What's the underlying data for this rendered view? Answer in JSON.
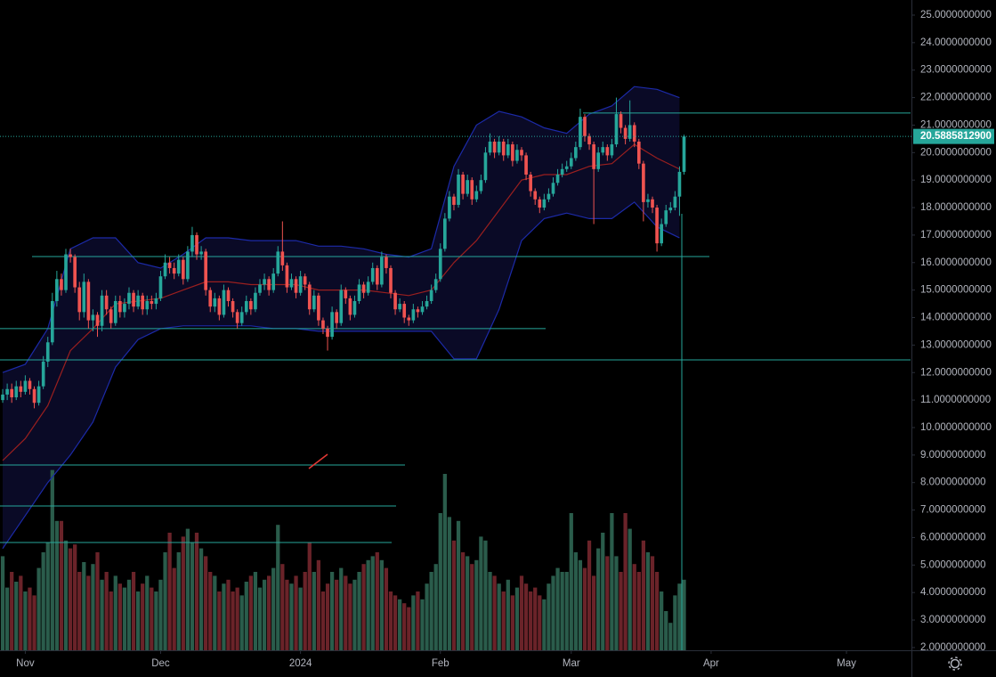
{
  "chart_data": {
    "type": "candlestick",
    "up_color": "#26a69a",
    "down_color": "#ef5350",
    "volume_up_color": "#2a5c4b",
    "volume_down_color": "#6a2329",
    "xlim": [
      -0.6,
      201.4
    ],
    "xticks": [
      {
        "value": 5,
        "label": "Nov"
      },
      {
        "value": 35,
        "label": "Dec"
      },
      {
        "value": 66,
        "label": "2024"
      },
      {
        "value": 97,
        "label": "Feb"
      },
      {
        "value": 126,
        "label": "Mar"
      },
      {
        "value": 157,
        "label": "Apr"
      },
      {
        "value": 187,
        "label": "May"
      }
    ],
    "ylim": [
      1.9,
      25.55
    ],
    "yticks": [
      {
        "value": 2,
        "label": "2.0000000000"
      },
      {
        "value": 3,
        "label": "3.0000000000"
      },
      {
        "value": 4,
        "label": "4.0000000000"
      },
      {
        "value": 5,
        "label": "5.0000000000"
      },
      {
        "value": 6,
        "label": "6.0000000000"
      },
      {
        "value": 7,
        "label": "7.0000000000"
      },
      {
        "value": 8,
        "label": "8.0000000000"
      },
      {
        "value": 9,
        "label": "9.0000000000"
      },
      {
        "value": 10,
        "label": "10.0000000000"
      },
      {
        "value": 11,
        "label": "11.0000000000"
      },
      {
        "value": 12,
        "label": "12.0000000000"
      },
      {
        "value": 13,
        "label": "13.0000000000"
      },
      {
        "value": 14,
        "label": "14.0000000000"
      },
      {
        "value": 15,
        "label": "15.0000000000"
      },
      {
        "value": 16,
        "label": "16.0000000000"
      },
      {
        "value": 17,
        "label": "17.0000000000"
      },
      {
        "value": 18,
        "label": "18.0000000000"
      },
      {
        "value": 19,
        "label": "19.0000000000"
      },
      {
        "value": 20,
        "label": "20.0000000000"
      },
      {
        "value": 21,
        "label": "21.0000000000"
      },
      {
        "value": 22,
        "label": "22.0000000000"
      },
      {
        "value": 23,
        "label": "23.0000000000"
      },
      {
        "value": 24,
        "label": "24.0000000000"
      },
      {
        "value": 25,
        "label": "25.0000000000"
      }
    ],
    "last_price": {
      "value": 20.58858129,
      "label": "20.5885812900"
    },
    "ohlc": [
      [
        11.0,
        11.4,
        10.9,
        11.2
      ],
      [
        11.2,
        11.6,
        11.0,
        11.4
      ],
      [
        11.4,
        11.6,
        10.9,
        11.1
      ],
      [
        11.1,
        11.7,
        11.0,
        11.5
      ],
      [
        11.5,
        11.7,
        11.1,
        11.3
      ],
      [
        11.3,
        11.9,
        11.2,
        11.7
      ],
      [
        11.7,
        11.8,
        11.2,
        11.4
      ],
      [
        11.4,
        11.5,
        10.7,
        10.9
      ],
      [
        10.9,
        11.7,
        10.8,
        11.5
      ],
      [
        11.5,
        12.6,
        11.4,
        12.4
      ],
      [
        12.4,
        13.3,
        12.2,
        13.1
      ],
      [
        13.1,
        14.9,
        13.0,
        14.6
      ],
      [
        14.6,
        15.7,
        14.4,
        15.4
      ],
      [
        15.4,
        15.6,
        14.8,
        15.0
      ],
      [
        15.0,
        16.5,
        14.9,
        16.3
      ],
      [
        16.3,
        16.5,
        16.0,
        16.2
      ],
      [
        16.2,
        16.3,
        14.9,
        15.1
      ],
      [
        15.1,
        15.3,
        13.9,
        14.2
      ],
      [
        14.2,
        15.6,
        14.0,
        15.3
      ],
      [
        15.3,
        15.4,
        13.6,
        13.9
      ],
      [
        13.9,
        14.3,
        13.5,
        14.1
      ],
      [
        14.1,
        14.2,
        13.3,
        13.7
      ],
      [
        13.7,
        15.0,
        13.5,
        14.8
      ],
      [
        14.8,
        15.0,
        14.1,
        14.3
      ],
      [
        14.3,
        14.4,
        13.6,
        13.8
      ],
      [
        13.8,
        14.8,
        13.7,
        14.6
      ],
      [
        14.6,
        14.8,
        14.0,
        14.2
      ],
      [
        14.2,
        14.7,
        14.0,
        14.5
      ],
      [
        14.5,
        15.1,
        14.3,
        14.9
      ],
      [
        14.9,
        15.0,
        14.2,
        14.4
      ],
      [
        14.4,
        15.0,
        14.3,
        14.8
      ],
      [
        14.8,
        14.9,
        14.1,
        14.3
      ],
      [
        14.3,
        14.8,
        14.1,
        14.6
      ],
      [
        14.6,
        14.8,
        14.3,
        14.5
      ],
      [
        14.5,
        14.9,
        14.3,
        14.7
      ],
      [
        14.7,
        15.7,
        14.6,
        15.5
      ],
      [
        15.5,
        16.3,
        15.4,
        16.0
      ],
      [
        16.0,
        16.2,
        15.6,
        15.8
      ],
      [
        15.8,
        16.0,
        15.4,
        15.6
      ],
      [
        15.6,
        16.3,
        15.5,
        16.1
      ],
      [
        16.1,
        16.2,
        15.2,
        15.4
      ],
      [
        15.4,
        16.6,
        15.3,
        16.4
      ],
      [
        16.4,
        17.3,
        16.2,
        17.0
      ],
      [
        17.0,
        17.1,
        16.1,
        16.3
      ],
      [
        16.3,
        16.6,
        16.1,
        16.4
      ],
      [
        16.4,
        16.5,
        14.8,
        15.0
      ],
      [
        15.0,
        15.1,
        14.2,
        14.4
      ],
      [
        14.4,
        14.9,
        14.2,
        14.7
      ],
      [
        14.7,
        14.8,
        13.9,
        14.1
      ],
      [
        14.1,
        15.2,
        14.0,
        15.0
      ],
      [
        15.0,
        15.1,
        14.4,
        14.6
      ],
      [
        14.6,
        14.7,
        14.0,
        14.2
      ],
      [
        14.2,
        14.3,
        13.6,
        13.8
      ],
      [
        13.8,
        14.4,
        13.7,
        14.2
      ],
      [
        14.2,
        14.8,
        14.1,
        14.6
      ],
      [
        14.6,
        14.7,
        14.1,
        14.3
      ],
      [
        14.3,
        15.1,
        14.2,
        14.9
      ],
      [
        14.9,
        15.4,
        14.8,
        15.2
      ],
      [
        15.2,
        15.6,
        15.0,
        15.4
      ],
      [
        15.4,
        15.5,
        14.8,
        15.0
      ],
      [
        15.0,
        15.8,
        14.9,
        15.6
      ],
      [
        15.6,
        16.6,
        15.5,
        16.4
      ],
      [
        16.4,
        17.5,
        15.7,
        15.9
      ],
      [
        15.9,
        16.0,
        14.9,
        15.1
      ],
      [
        15.1,
        15.6,
        15.0,
        15.4
      ],
      [
        15.4,
        15.5,
        14.7,
        14.9
      ],
      [
        14.9,
        15.7,
        14.8,
        15.5
      ],
      [
        15.5,
        15.6,
        15.0,
        15.2
      ],
      [
        15.2,
        15.3,
        14.1,
        14.3
      ],
      [
        14.3,
        15.0,
        14.2,
        14.8
      ],
      [
        14.8,
        14.9,
        13.7,
        13.9
      ],
      [
        13.9,
        14.0,
        13.4,
        13.6
      ],
      [
        13.6,
        13.7,
        12.8,
        13.3
      ],
      [
        13.3,
        14.4,
        13.2,
        14.2
      ],
      [
        14.2,
        14.3,
        13.6,
        13.8
      ],
      [
        13.8,
        15.2,
        13.7,
        15.0
      ],
      [
        15.0,
        15.1,
        14.5,
        14.7
      ],
      [
        14.7,
        14.8,
        13.9,
        14.1
      ],
      [
        14.1,
        14.8,
        14.0,
        14.6
      ],
      [
        14.6,
        15.4,
        14.5,
        15.2
      ],
      [
        15.2,
        15.3,
        14.7,
        14.9
      ],
      [
        14.9,
        15.5,
        14.8,
        15.3
      ],
      [
        15.3,
        16.0,
        15.2,
        15.8
      ],
      [
        15.8,
        15.9,
        15.0,
        15.2
      ],
      [
        15.2,
        16.4,
        15.1,
        16.2
      ],
      [
        16.2,
        16.3,
        15.6,
        15.8
      ],
      [
        15.8,
        15.9,
        14.7,
        14.9
      ],
      [
        14.9,
        15.0,
        14.1,
        14.3
      ],
      [
        14.3,
        14.7,
        14.2,
        14.5
      ],
      [
        14.5,
        14.6,
        13.8,
        14.0
      ],
      [
        14.0,
        14.1,
        13.7,
        13.9
      ],
      [
        13.9,
        14.5,
        13.8,
        14.3
      ],
      [
        14.3,
        14.4,
        14.0,
        14.2
      ],
      [
        14.2,
        14.6,
        14.1,
        14.4
      ],
      [
        14.4,
        14.8,
        14.3,
        14.6
      ],
      [
        14.6,
        15.2,
        14.5,
        15.0
      ],
      [
        15.0,
        15.6,
        14.9,
        15.4
      ],
      [
        15.4,
        16.7,
        15.3,
        16.5
      ],
      [
        16.5,
        17.8,
        16.4,
        17.6
      ],
      [
        17.6,
        18.6,
        17.5,
        18.4
      ],
      [
        18.4,
        18.5,
        17.9,
        18.1
      ],
      [
        18.1,
        19.4,
        18.0,
        19.2
      ],
      [
        19.2,
        19.3,
        18.3,
        18.5
      ],
      [
        18.5,
        19.2,
        18.4,
        19.0
      ],
      [
        19.0,
        19.1,
        18.1,
        18.3
      ],
      [
        18.3,
        18.8,
        18.2,
        18.6
      ],
      [
        18.6,
        19.2,
        18.5,
        19.0
      ],
      [
        19.0,
        20.2,
        18.9,
        20.0
      ],
      [
        20.0,
        20.7,
        19.9,
        20.4
      ],
      [
        20.4,
        20.5,
        19.8,
        20.0
      ],
      [
        20.0,
        20.6,
        19.9,
        20.4
      ],
      [
        20.4,
        20.5,
        19.7,
        19.9
      ],
      [
        19.9,
        20.5,
        19.8,
        20.3
      ],
      [
        20.3,
        20.4,
        19.5,
        19.7
      ],
      [
        19.7,
        20.3,
        19.6,
        20.1
      ],
      [
        20.1,
        20.2,
        19.7,
        19.9
      ],
      [
        19.9,
        20.0,
        19.0,
        19.2
      ],
      [
        19.2,
        19.3,
        18.4,
        18.6
      ],
      [
        18.6,
        18.7,
        18.1,
        18.3
      ],
      [
        18.3,
        18.4,
        17.8,
        18.0
      ],
      [
        18.0,
        18.5,
        17.9,
        18.3
      ],
      [
        18.3,
        18.7,
        18.2,
        18.5
      ],
      [
        18.5,
        19.1,
        18.4,
        18.9
      ],
      [
        18.9,
        19.4,
        18.8,
        19.2
      ],
      [
        19.2,
        19.6,
        19.1,
        19.4
      ],
      [
        19.4,
        19.7,
        19.3,
        19.5
      ],
      [
        19.5,
        20.0,
        19.4,
        19.8
      ],
      [
        19.8,
        20.4,
        19.7,
        20.2
      ],
      [
        20.2,
        21.6,
        20.1,
        21.3
      ],
      [
        21.3,
        21.4,
        20.4,
        20.6
      ],
      [
        20.6,
        20.7,
        20.1,
        20.3
      ],
      [
        20.3,
        20.4,
        17.4,
        19.4
      ],
      [
        19.4,
        20.2,
        19.3,
        20.0
      ],
      [
        20.0,
        20.4,
        19.9,
        20.2
      ],
      [
        20.2,
        20.3,
        19.7,
        19.9
      ],
      [
        19.9,
        20.5,
        19.8,
        20.3
      ],
      [
        20.3,
        22.0,
        20.2,
        21.4
      ],
      [
        21.4,
        21.5,
        20.7,
        20.9
      ],
      [
        20.9,
        21.0,
        20.3,
        20.5
      ],
      [
        20.5,
        21.9,
        20.4,
        21.0
      ],
      [
        21.0,
        21.1,
        20.2,
        20.4
      ],
      [
        20.4,
        20.5,
        19.4,
        19.6
      ],
      [
        19.6,
        19.7,
        17.5,
        18.2
      ],
      [
        18.2,
        18.5,
        18.0,
        18.3
      ],
      [
        18.3,
        18.4,
        17.8,
        18.0
      ],
      [
        18.0,
        18.1,
        16.4,
        16.7
      ],
      [
        16.7,
        17.6,
        16.6,
        17.4
      ],
      [
        17.4,
        18.1,
        17.3,
        17.9
      ],
      [
        17.9,
        18.2,
        17.8,
        18.0
      ],
      [
        18.0,
        18.6,
        17.9,
        18.4
      ],
      [
        18.4,
        19.5,
        17.7,
        19.3
      ],
      [
        19.3,
        20.65,
        19.2,
        20.58858129
      ]
    ],
    "volume_lim": [
      0,
      100
    ],
    "volume": [
      48,
      32,
      40,
      35,
      38,
      30,
      32,
      28,
      42,
      50,
      55,
      92,
      66,
      66,
      56,
      52,
      54,
      40,
      45,
      38,
      44,
      50,
      36,
      40,
      30,
      38,
      34,
      32,
      36,
      40,
      30,
      34,
      38,
      32,
      30,
      36,
      50,
      60,
      42,
      50,
      58,
      62,
      55,
      60,
      52,
      48,
      40,
      38,
      30,
      34,
      36,
      30,
      32,
      28,
      35,
      38,
      40,
      32,
      36,
      38,
      42,
      64,
      44,
      36,
      34,
      38,
      32,
      40,
      55,
      40,
      46,
      30,
      34,
      40,
      36,
      42,
      38,
      34,
      36,
      40,
      44,
      46,
      48,
      50,
      46,
      42,
      30,
      28,
      26,
      24,
      22,
      28,
      30,
      26,
      34,
      40,
      44,
      70,
      90,
      68,
      56,
      66,
      50,
      48,
      44,
      46,
      58,
      56,
      40,
      38,
      34,
      30,
      36,
      28,
      32,
      38,
      34,
      30,
      32,
      28,
      26,
      34,
      38,
      42,
      40,
      40,
      70,
      50,
      46,
      42,
      56,
      38,
      52,
      60,
      48,
      70,
      48,
      40,
      70,
      62,
      44,
      40,
      56,
      50,
      48,
      40,
      30,
      20,
      14,
      28,
      34,
      36
    ],
    "bands": {
      "band_color": "#1c2aa8",
      "middle_color": "#9a1f1f",
      "fill_color": "#0a0a26",
      "x": [
        0,
        5,
        10,
        15,
        20,
        25,
        30,
        35,
        40,
        45,
        50,
        55,
        60,
        65,
        70,
        75,
        80,
        85,
        90,
        95,
        100,
        105,
        110,
        115,
        120,
        125,
        130,
        135,
        140,
        145,
        150
      ],
      "upper": [
        12.0,
        12.3,
        13.6,
        16.5,
        16.9,
        16.9,
        16.0,
        15.8,
        16.3,
        16.9,
        16.9,
        16.8,
        16.8,
        16.8,
        16.6,
        16.6,
        16.5,
        16.3,
        16.2,
        16.5,
        19.5,
        21.0,
        21.5,
        21.3,
        20.9,
        20.7,
        21.4,
        21.7,
        22.4,
        22.3,
        22.0
      ],
      "middle": [
        8.8,
        9.6,
        10.8,
        12.8,
        13.6,
        14.5,
        14.6,
        14.7,
        15.0,
        15.3,
        15.3,
        15.2,
        15.2,
        15.2,
        15.0,
        15.0,
        15.0,
        14.9,
        14.8,
        15.0,
        16.0,
        16.8,
        17.9,
        19.0,
        19.2,
        19.2,
        19.5,
        19.6,
        20.3,
        19.8,
        19.4
      ],
      "lower": [
        5.6,
        6.8,
        8.0,
        9.0,
        10.2,
        12.2,
        13.2,
        13.6,
        13.7,
        13.7,
        13.7,
        13.7,
        13.6,
        13.6,
        13.5,
        13.5,
        13.5,
        13.5,
        13.5,
        13.5,
        12.5,
        12.5,
        14.3,
        16.8,
        17.6,
        17.8,
        17.6,
        17.6,
        18.2,
        17.3,
        16.9
      ]
    },
    "levels": [
      21.44,
      16.22,
      13.6,
      12.46,
      8.64,
      7.15,
      5.82
    ],
    "level_color": "#26a69a"
  }
}
